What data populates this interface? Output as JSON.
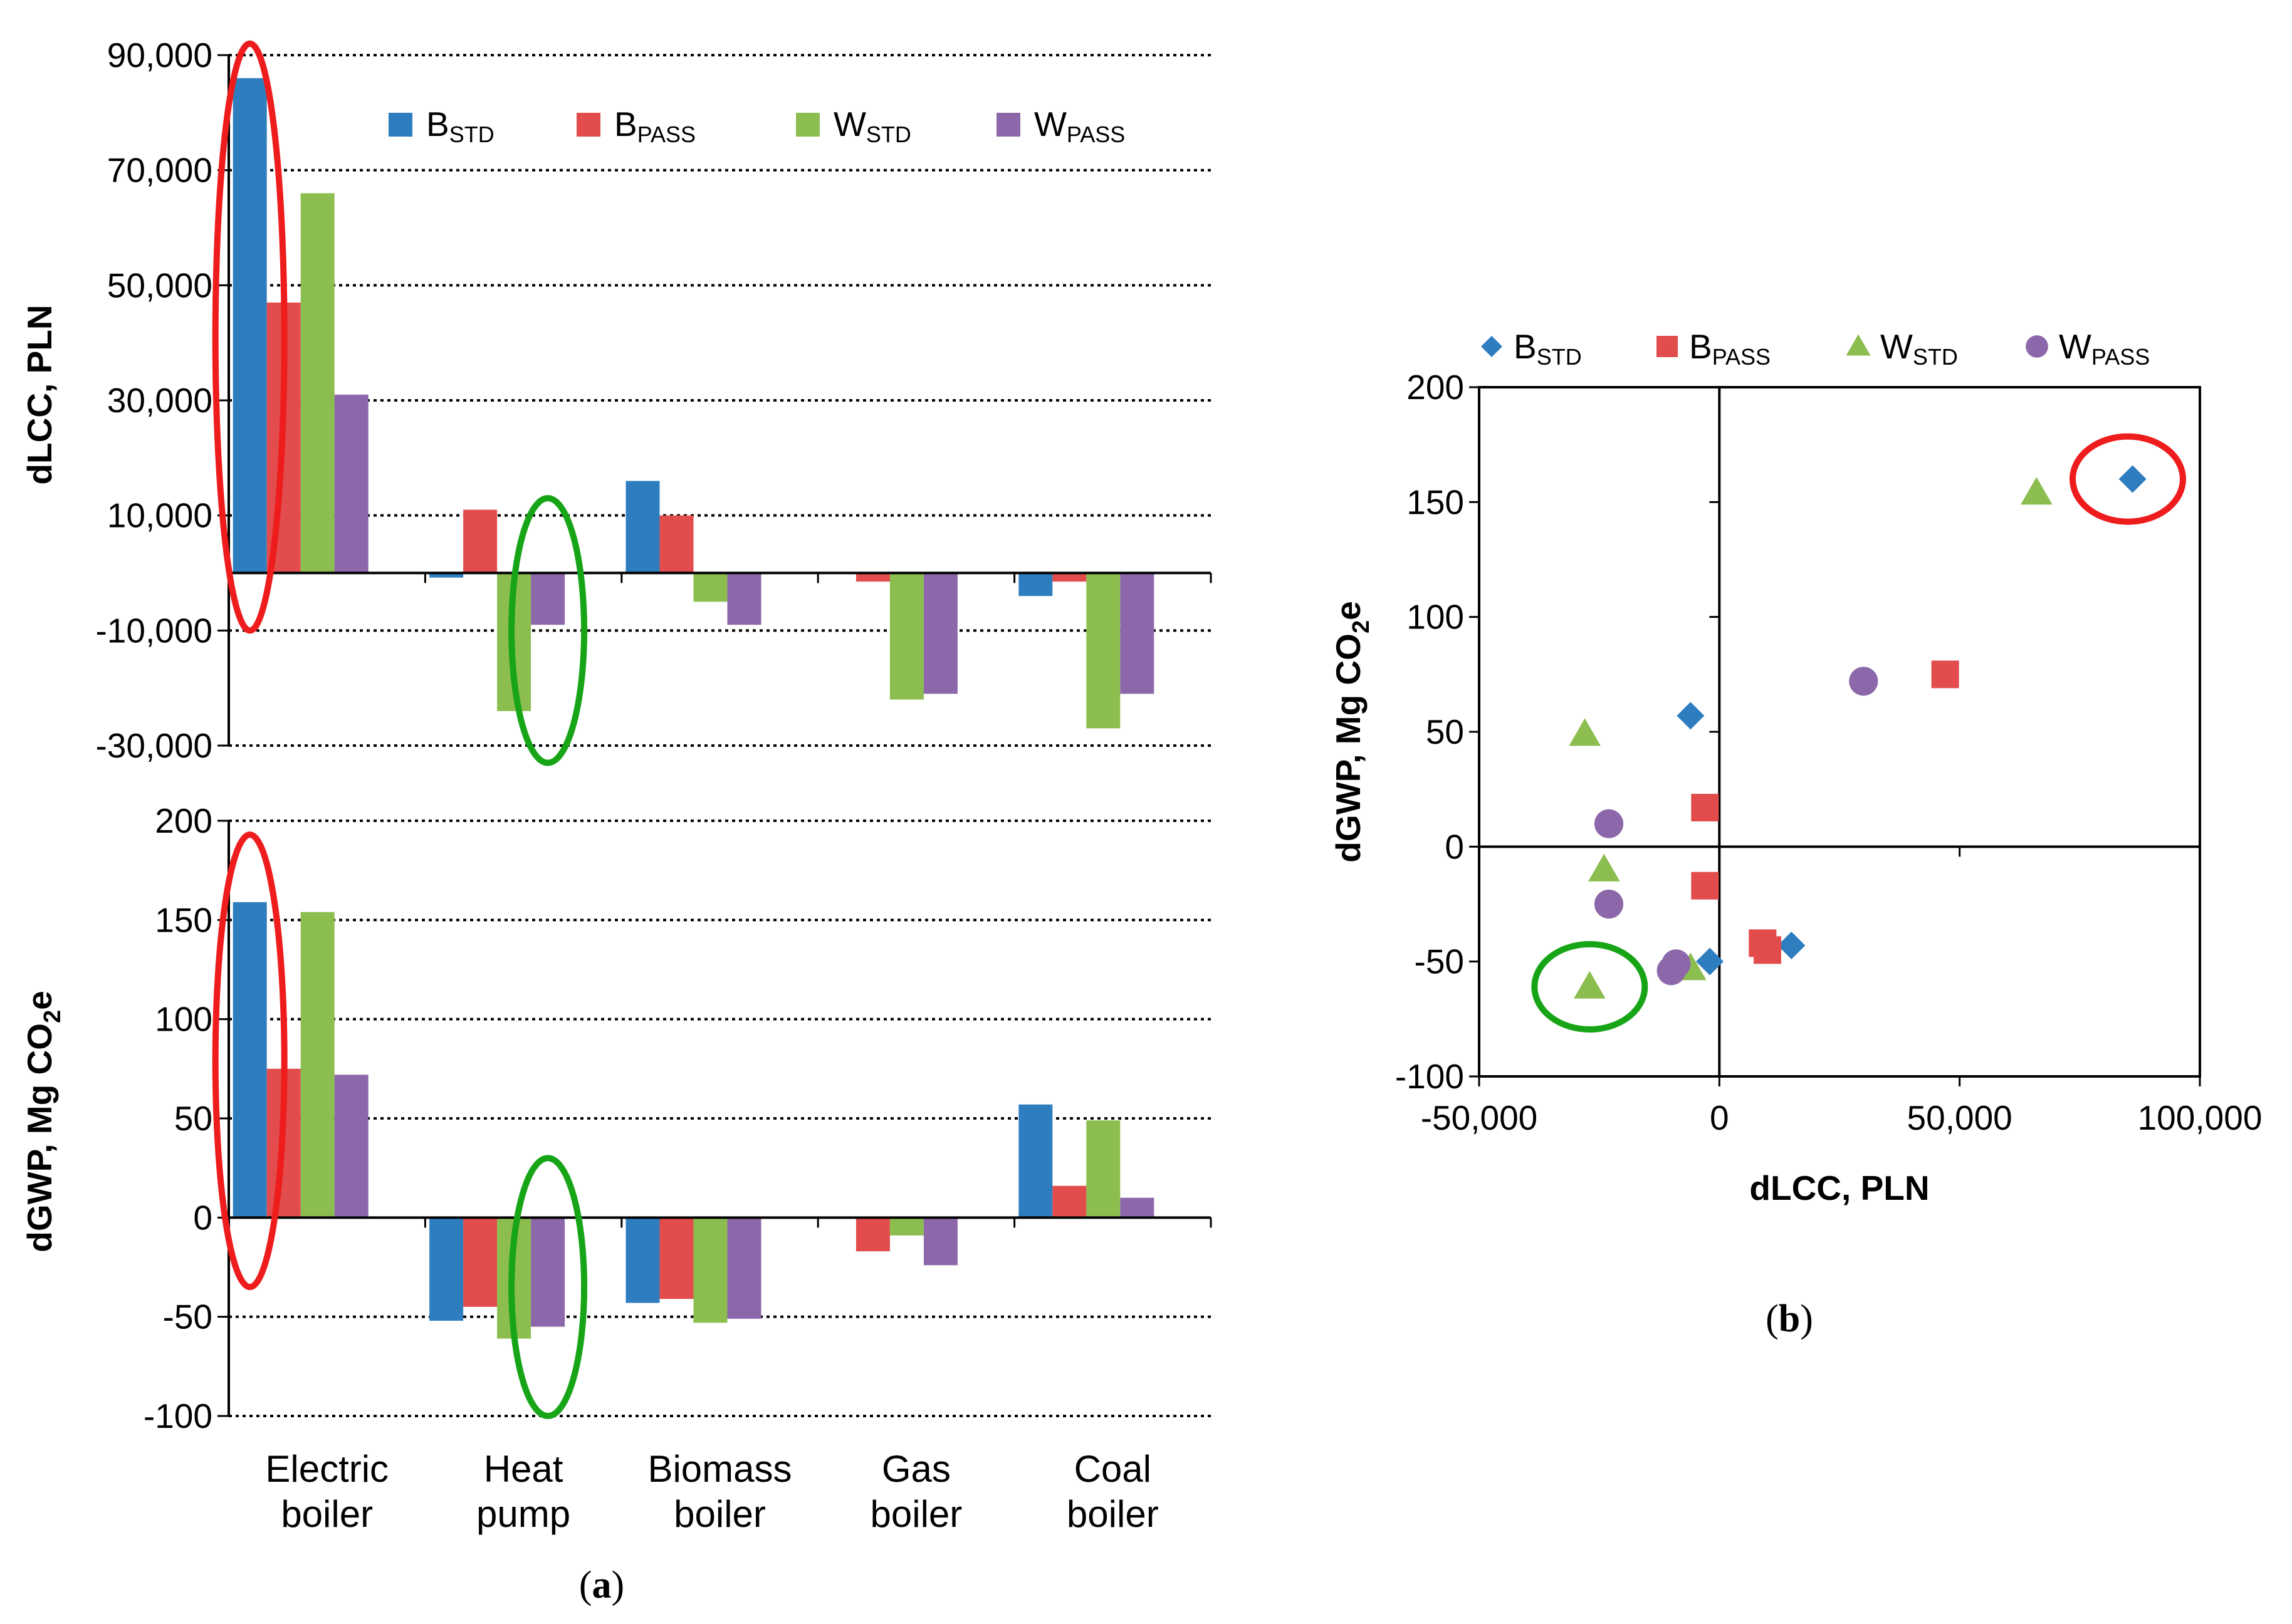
{
  "colors": {
    "B_STD": "#2e7ebf",
    "B_PASS": "#e24c4c",
    "W_STD": "#8cbd4f",
    "W_PASS": "#8c68aa",
    "highlight_red": "#ee1c1c",
    "highlight_green": "#17a517"
  },
  "legend": [
    {
      "key": "B_STD",
      "main": "B",
      "sub": "STD"
    },
    {
      "key": "B_PASS",
      "main": "B",
      "sub": "PASS"
    },
    {
      "key": "W_STD",
      "main": "W",
      "sub": "STD"
    },
    {
      "key": "W_PASS",
      "main": "W",
      "sub": "PASS"
    }
  ],
  "panel_labels": {
    "a": {
      "open": "(",
      "letter": "a",
      "close": ")"
    },
    "b": {
      "open": "(",
      "letter": "b",
      "close": ")"
    }
  },
  "chart_data": [
    {
      "id": "a-top",
      "type": "bar",
      "categories": [
        [
          "Electric",
          "boiler"
        ],
        [
          "Heat",
          "pump"
        ],
        [
          "Biomass",
          "boiler"
        ],
        [
          "Gas",
          "boiler"
        ],
        [
          "Coal",
          "boiler"
        ]
      ],
      "series": [
        {
          "name": "B_STD",
          "values": [
            86000,
            -800,
            16000,
            0,
            -4000
          ]
        },
        {
          "name": "B_PASS",
          "values": [
            47000,
            11000,
            10000,
            -1500,
            -1500
          ]
        },
        {
          "name": "W_STD",
          "values": [
            66000,
            -24000,
            -5000,
            -22000,
            -27000
          ]
        },
        {
          "name": "W_PASS",
          "values": [
            31000,
            -9000,
            -9000,
            -21000,
            -21000
          ]
        }
      ],
      "ylabel": "dLCC, PLN",
      "ylim": [
        -30000,
        90000
      ],
      "yticks": [
        90000,
        70000,
        50000,
        30000,
        10000,
        -10000,
        -30000
      ],
      "ytick_labels": [
        "90,000",
        "70,000",
        "50,000",
        "30,000",
        "10,000",
        "-10,000",
        "-30,000"
      ],
      "grid": true
    },
    {
      "id": "a-bottom",
      "type": "bar",
      "categories": [
        [
          "Electric",
          "boiler"
        ],
        [
          "Heat",
          "pump"
        ],
        [
          "Biomass",
          "boiler"
        ],
        [
          "Gas",
          "boiler"
        ],
        [
          "Coal",
          "boiler"
        ]
      ],
      "series": [
        {
          "name": "B_STD",
          "values": [
            159,
            -52,
            -43,
            0,
            57
          ]
        },
        {
          "name": "B_PASS",
          "values": [
            75,
            -45,
            -41,
            -17,
            16
          ]
        },
        {
          "name": "W_STD",
          "values": [
            154,
            -61,
            -53,
            -9,
            49
          ]
        },
        {
          "name": "W_PASS",
          "values": [
            72,
            -55,
            -51,
            -24,
            10
          ]
        }
      ],
      "ylabel": {
        "main": "dGWP, Mg CO",
        "sub": "2",
        "after": "e"
      },
      "ylim": [
        -100,
        200
      ],
      "yticks": [
        200,
        150,
        100,
        50,
        0,
        -50,
        -100
      ],
      "ytick_labels": [
        "200",
        "150",
        "100",
        "50",
        "0",
        "-50",
        "-100"
      ],
      "grid": true
    },
    {
      "id": "b",
      "type": "scatter",
      "series": [
        {
          "name": "B_STD",
          "marker": "diamond",
          "points": [
            [
              86000,
              160
            ],
            [
              -6000,
              57
            ],
            [
              -2000,
              -50
            ],
            [
              15000,
              -43
            ]
          ]
        },
        {
          "name": "B_PASS",
          "marker": "square",
          "points": [
            [
              47000,
              75
            ],
            [
              -3000,
              17
            ],
            [
              -3000,
              -17
            ],
            [
              9000,
              -42
            ],
            [
              10000,
              -45
            ]
          ]
        },
        {
          "name": "W_STD",
          "marker": "triangle",
          "points": [
            [
              66000,
              154
            ],
            [
              -28000,
              49
            ],
            [
              -24000,
              -10
            ],
            [
              -6000,
              -53
            ],
            [
              -27000,
              -61
            ]
          ]
        },
        {
          "name": "W_PASS",
          "marker": "circle",
          "points": [
            [
              30000,
              72
            ],
            [
              -23000,
              10
            ],
            [
              -23000,
              -25
            ],
            [
              -9000,
              -51
            ],
            [
              -10000,
              -54
            ]
          ]
        }
      ],
      "xlabel": "dLCC, PLN",
      "ylabel": {
        "main": "dGWP, Mg CO",
        "sub": "2",
        "after": "e"
      },
      "xlim": [
        -50000,
        100000
      ],
      "ylim": [
        -100,
        200
      ],
      "xticks": [
        -50000,
        0,
        50000,
        100000
      ],
      "xtick_labels": [
        "-50,000",
        "0",
        "50,000",
        "100,000"
      ],
      "yticks": [
        200,
        150,
        100,
        50,
        0,
        -50,
        -100
      ],
      "ytick_labels": [
        "200",
        "150",
        "100",
        "50",
        "0",
        "-50",
        "-100"
      ],
      "grid": false
    }
  ]
}
